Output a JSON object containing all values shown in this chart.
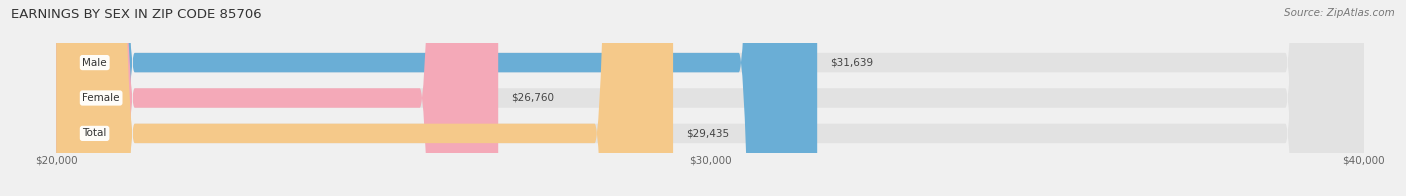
{
  "title": "EARNINGS BY SEX IN ZIP CODE 85706",
  "source": "Source: ZipAtlas.com",
  "categories": [
    "Male",
    "Female",
    "Total"
  ],
  "values": [
    31639,
    26760,
    29435
  ],
  "bar_colors": [
    "#6aaed6",
    "#f4a9b8",
    "#f5c98a"
  ],
  "bar_labels": [
    "$31,639",
    "$26,760",
    "$29,435"
  ],
  "xmin": 20000,
  "xmax": 40000,
  "xticks": [
    20000,
    30000,
    40000
  ],
  "xtick_labels": [
    "$20,000",
    "$30,000",
    "$40,000"
  ],
  "background_color": "#f0f0f0",
  "bar_bg_color": "#e2e2e2",
  "title_fontsize": 9.5,
  "source_fontsize": 7.5,
  "label_fontsize": 7.5,
  "tick_fontsize": 7.5,
  "category_fontsize": 7.5
}
